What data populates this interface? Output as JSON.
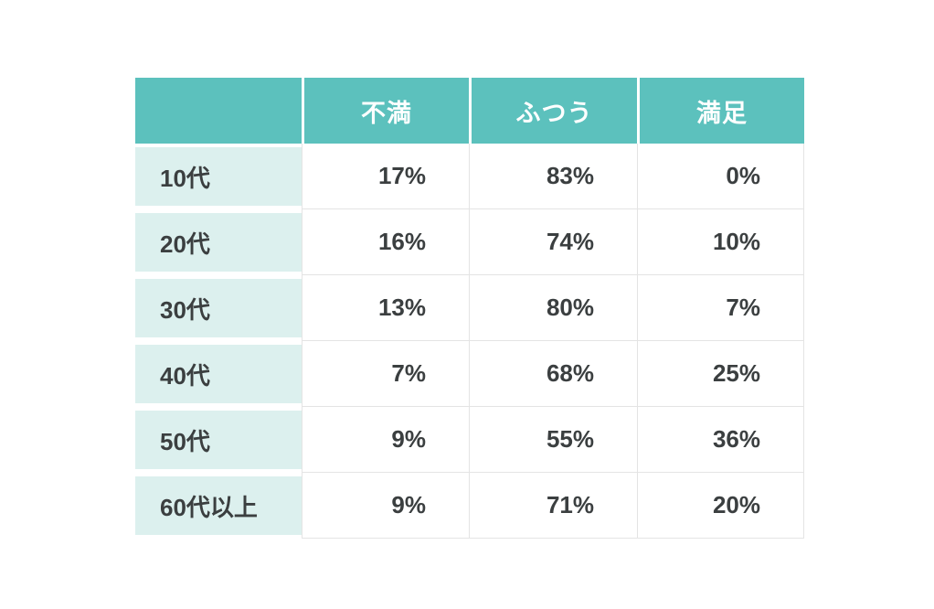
{
  "colors": {
    "header_bg": "#5cc1bd",
    "header_text": "#ffffff",
    "label_bg": "#dcf0ee",
    "body_text": "#3b3f40",
    "grid_border": "#e4e4e4",
    "page_bg": "#ffffff"
  },
  "table": {
    "header": [
      "",
      "不満",
      "ふつう",
      "満足"
    ],
    "rows": [
      {
        "label": "10代",
        "values": [
          "17%",
          "83%",
          "0%"
        ]
      },
      {
        "label": "20代",
        "values": [
          "16%",
          "74%",
          "10%"
        ]
      },
      {
        "label": "30代",
        "values": [
          "13%",
          "80%",
          "7%"
        ]
      },
      {
        "label": "40代",
        "values": [
          "7%",
          "68%",
          "25%"
        ]
      },
      {
        "label": "50代",
        "values": [
          "9%",
          "55%",
          "36%"
        ]
      },
      {
        "label": "60代以上",
        "values": [
          "9%",
          "71%",
          "20%"
        ]
      }
    ]
  },
  "chart_data": {
    "type": "table",
    "title": "",
    "categories": [
      "10代",
      "20代",
      "30代",
      "40代",
      "50代",
      "60代以上"
    ],
    "series": [
      {
        "name": "不満",
        "values": [
          17,
          16,
          13,
          7,
          9,
          9
        ]
      },
      {
        "name": "ふつう",
        "values": [
          83,
          74,
          80,
          68,
          55,
          71
        ]
      },
      {
        "name": "満足",
        "values": [
          0,
          10,
          7,
          25,
          36,
          20
        ]
      }
    ],
    "unit": "%",
    "layout": {
      "header_row": true,
      "label_column": true,
      "grid": true
    }
  }
}
